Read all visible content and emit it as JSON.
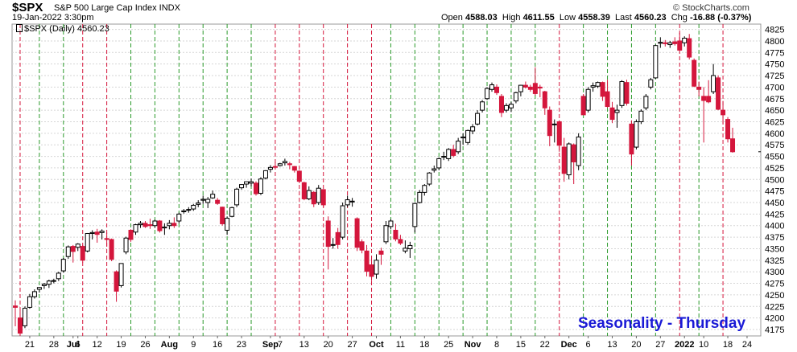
{
  "header": {
    "symbol": "$SPX",
    "description": "S&P 500 Large Cap Index INDX",
    "datetime": "19-Jan-2022 3:30pm",
    "watermark": "© StockCharts.com",
    "open_label": "Open",
    "open": "4588.03",
    "high_label": "High",
    "high": "4611.55",
    "low_label": "Low",
    "low": "4558.39",
    "last_label": "Last",
    "last": "4560.23",
    "chg_label": "Chg",
    "chg": "-16.88 (-0.37%)"
  },
  "legend": {
    "label": "$SPX (Daily) 4560.23"
  },
  "annotation": {
    "text": "Seasonality - Thursday"
  },
  "colors": {
    "up": "#000000",
    "down": "#d4163c",
    "green_line": "#2a9a2a",
    "red_line": "#d4163c",
    "grid": "#d6d6d6"
  },
  "chart_data": {
    "type": "candlestick",
    "title": "$SPX (Daily) 4560.23",
    "ylim": [
      4150,
      4830
    ],
    "y_axis_side": "right",
    "y_ticks": [
      4175,
      4200,
      4225,
      4250,
      4275,
      4300,
      4325,
      4350,
      4375,
      4400,
      4425,
      4450,
      4475,
      4500,
      4525,
      4550,
      4575,
      4600,
      4625,
      4650,
      4675,
      4700,
      4725,
      4750,
      4775,
      4800,
      4825
    ],
    "x_labels": [
      {
        "label": "21",
        "i": 3
      },
      {
        "label": "28",
        "i": 8
      },
      {
        "label": "Jul",
        "i": 12,
        "bold": true
      },
      {
        "label": "6",
        "i": 13
      },
      {
        "label": "12",
        "i": 17
      },
      {
        "label": "19",
        "i": 22
      },
      {
        "label": "26",
        "i": 27
      },
      {
        "label": "Aug",
        "i": 32,
        "bold": true
      },
      {
        "label": "9",
        "i": 37
      },
      {
        "label": "16",
        "i": 42
      },
      {
        "label": "23",
        "i": 47
      },
      {
        "label": "Sep",
        "i": 53,
        "bold": true
      },
      {
        "label": "7",
        "i": 55
      },
      {
        "label": "13",
        "i": 60
      },
      {
        "label": "20",
        "i": 65
      },
      {
        "label": "27",
        "i": 70
      },
      {
        "label": "Oct",
        "i": 75,
        "bold": true
      },
      {
        "label": "11",
        "i": 80
      },
      {
        "label": "18",
        "i": 85
      },
      {
        "label": "25",
        "i": 90
      },
      {
        "label": "Nov",
        "i": 95,
        "bold": true
      },
      {
        "label": "8",
        "i": 100
      },
      {
        "label": "15",
        "i": 105
      },
      {
        "label": "22",
        "i": 110
      },
      {
        "label": "Dec",
        "i": 115,
        "bold": true
      },
      {
        "label": "6",
        "i": 119
      },
      {
        "label": "13",
        "i": 124
      },
      {
        "label": "20",
        "i": 129
      },
      {
        "label": "27",
        "i": 134
      },
      {
        "label": "2022",
        "i": 139,
        "bold": true
      },
      {
        "label": "10",
        "i": 143
      },
      {
        "label": "18",
        "i": 148
      },
      {
        "label": "24",
        "i": 152
      }
    ],
    "vlines": [
      {
        "i": 1,
        "color": "red"
      },
      {
        "i": 5,
        "color": "green"
      },
      {
        "i": 10,
        "color": "green"
      },
      {
        "i": 14,
        "color": "red"
      },
      {
        "i": 19,
        "color": "red"
      },
      {
        "i": 24,
        "color": "green"
      },
      {
        "i": 29,
        "color": "green"
      },
      {
        "i": 34,
        "color": "green"
      },
      {
        "i": 39,
        "color": "green"
      },
      {
        "i": 44,
        "color": "green"
      },
      {
        "i": 49,
        "color": "green"
      },
      {
        "i": 54,
        "color": "red"
      },
      {
        "i": 59,
        "color": "red"
      },
      {
        "i": 64,
        "color": "red"
      },
      {
        "i": 69,
        "color": "red"
      },
      {
        "i": 74,
        "color": "red"
      },
      {
        "i": 78,
        "color": "green"
      },
      {
        "i": 83,
        "color": "green"
      },
      {
        "i": 88,
        "color": "green"
      },
      {
        "i": 93,
        "color": "green"
      },
      {
        "i": 98,
        "color": "green"
      },
      {
        "i": 103,
        "color": "green"
      },
      {
        "i": 108,
        "color": "green"
      },
      {
        "i": 113,
        "color": "red"
      },
      {
        "i": 118,
        "color": "green"
      },
      {
        "i": 123,
        "color": "green"
      },
      {
        "i": 128,
        "color": "green"
      },
      {
        "i": 133,
        "color": "green"
      },
      {
        "i": 138,
        "color": "red"
      },
      {
        "i": 142,
        "color": "green"
      },
      {
        "i": 147,
        "color": "red"
      }
    ],
    "candles": [
      [
        4226,
        4238,
        4182,
        4223
      ],
      [
        4200,
        4215,
        4165,
        4167
      ],
      [
        4183,
        4225,
        4178,
        4221
      ],
      [
        4223,
        4252,
        4220,
        4246
      ],
      [
        4246,
        4262,
        4242,
        4257
      ],
      [
        4262,
        4267,
        4255,
        4266
      ],
      [
        4270,
        4276,
        4263,
        4273
      ],
      [
        4273,
        4283,
        4265,
        4280
      ],
      [
        4280,
        4285,
        4275,
        4281
      ],
      [
        4285,
        4300,
        4280,
        4297
      ],
      [
        4302,
        4330,
        4298,
        4327
      ],
      [
        4333,
        4357,
        4328,
        4354
      ],
      [
        4355,
        4358,
        4320,
        4344
      ],
      [
        4353,
        4362,
        4345,
        4360
      ],
      [
        4355,
        4358,
        4320,
        4325
      ],
      [
        4345,
        4384,
        4342,
        4383
      ],
      [
        4383,
        4390,
        4370,
        4385
      ],
      [
        4386,
        4393,
        4363,
        4381
      ],
      [
        4385,
        4392,
        4370,
        4388
      ],
      [
        4372,
        4385,
        4355,
        4370
      ],
      [
        4370,
        4372,
        4323,
        4327
      ],
      [
        4300,
        4303,
        4235,
        4258
      ],
      [
        4270,
        4318,
        4266,
        4318
      ],
      [
        4343,
        4376,
        4338,
        4373
      ],
      [
        4390,
        4392,
        4365,
        4370
      ],
      [
        4386,
        4404,
        4380,
        4402
      ],
      [
        4402,
        4410,
        4395,
        4405
      ],
      [
        4405,
        4410,
        4395,
        4398
      ],
      [
        4402,
        4415,
        4393,
        4400
      ],
      [
        4400,
        4413,
        4395,
        4410
      ],
      [
        4410,
        4412,
        4385,
        4389
      ],
      [
        4395,
        4405,
        4380,
        4397
      ],
      [
        4400,
        4412,
        4392,
        4405
      ],
      [
        4405,
        4418,
        4395,
        4400
      ],
      [
        4410,
        4428,
        4405,
        4425
      ],
      [
        4430,
        4436,
        4426,
        4432
      ],
      [
        4434,
        4440,
        4428,
        4435
      ],
      [
        4436,
        4447,
        4432,
        4444
      ],
      [
        4446,
        4455,
        4440,
        4449
      ],
      [
        4455,
        4465,
        4447,
        4457
      ],
      [
        4450,
        4462,
        4438,
        4457
      ],
      [
        4460,
        4476,
        4458,
        4468
      ],
      [
        4455,
        4460,
        4445,
        4448
      ],
      [
        4440,
        4441,
        4400,
        4404
      ],
      [
        4390,
        4420,
        4380,
        4416
      ],
      [
        4420,
        4441,
        4418,
        4439
      ],
      [
        4445,
        4482,
        4440,
        4479
      ],
      [
        4482,
        4490,
        4478,
        4489
      ],
      [
        4490,
        4495,
        4482,
        4495
      ],
      [
        4492,
        4502,
        4485,
        4495
      ],
      [
        4492,
        4496,
        4465,
        4469
      ],
      [
        4470,
        4505,
        4466,
        4501
      ],
      [
        4503,
        4520,
        4500,
        4519
      ],
      [
        4522,
        4531,
        4515,
        4526
      ],
      [
        4528,
        4537,
        4522,
        4527
      ],
      [
        4530,
        4536,
        4528,
        4534
      ],
      [
        4536,
        4545,
        4530,
        4539
      ],
      [
        4534,
        4538,
        4522,
        4532
      ],
      [
        4528,
        4529,
        4515,
        4520
      ],
      [
        4518,
        4520,
        4492,
        4496
      ],
      [
        4493,
        4495,
        4455,
        4458
      ],
      [
        4458,
        4485,
        4455,
        4476
      ],
      [
        4472,
        4475,
        4440,
        4447
      ],
      [
        4450,
        4488,
        4445,
        4481
      ],
      [
        4478,
        4479,
        4440,
        4445
      ],
      [
        4410,
        4420,
        4305,
        4355
      ],
      [
        4358,
        4373,
        4350,
        4359
      ],
      [
        4385,
        4395,
        4350,
        4359
      ],
      [
        4375,
        4450,
        4370,
        4443
      ],
      [
        4445,
        4465,
        4440,
        4456
      ],
      [
        4452,
        4460,
        4441,
        4453
      ],
      [
        4415,
        4418,
        4345,
        4353
      ],
      [
        4365,
        4370,
        4340,
        4347
      ],
      [
        4345,
        4358,
        4290,
        4301
      ],
      [
        4315,
        4335,
        4280,
        4290
      ],
      [
        4295,
        4338,
        4285,
        4325
      ],
      [
        4345,
        4352,
        4315,
        4338
      ],
      [
        4365,
        4410,
        4360,
        4400
      ],
      [
        4398,
        4414,
        4392,
        4410
      ],
      [
        4390,
        4404,
        4366,
        4371
      ],
      [
        4370,
        4380,
        4358,
        4362
      ],
      [
        4345,
        4368,
        4340,
        4351
      ],
      [
        4350,
        4365,
        4330,
        4357
      ],
      [
        4398,
        4450,
        4385,
        4448
      ],
      [
        4450,
        4477,
        4448,
        4472
      ],
      [
        4472,
        4490,
        4465,
        4487
      ],
      [
        4490,
        4516,
        4486,
        4514
      ],
      [
        4520,
        4530,
        4515,
        4523
      ],
      [
        4525,
        4548,
        4520,
        4545
      ],
      [
        4550,
        4560,
        4542,
        4550
      ],
      [
        4545,
        4568,
        4540,
        4565
      ],
      [
        4565,
        4575,
        4548,
        4552
      ],
      [
        4560,
        4590,
        4555,
        4583
      ],
      [
        4590,
        4600,
        4575,
        4592
      ],
      [
        4580,
        4608,
        4575,
        4606
      ],
      [
        4605,
        4620,
        4598,
        4614
      ],
      [
        4620,
        4650,
        4617,
        4643
      ],
      [
        4650,
        4672,
        4645,
        4668
      ],
      [
        4675,
        4700,
        4672,
        4697
      ],
      [
        4695,
        4710,
        4690,
        4705
      ],
      [
        4700,
        4706,
        4683,
        4688
      ],
      [
        4680,
        4685,
        4635,
        4645
      ],
      [
        4650,
        4665,
        4645,
        4660
      ],
      [
        4655,
        4668,
        4646,
        4663
      ],
      [
        4670,
        4690,
        4665,
        4688
      ],
      [
        4690,
        4705,
        4680,
        4704
      ],
      [
        4704,
        4712,
        4697,
        4700
      ],
      [
        4700,
        4705,
        4690,
        4695
      ],
      [
        4708,
        4743,
        4682,
        4686
      ],
      [
        4700,
        4705,
        4678,
        4698
      ],
      [
        4690,
        4692,
        4640,
        4655
      ],
      [
        4650,
        4658,
        4572,
        4595
      ],
      [
        4620,
        4630,
        4580,
        4620
      ],
      [
        4625,
        4628,
        4560,
        4574
      ],
      [
        4570,
        4590,
        4495,
        4513
      ],
      [
        4510,
        4580,
        4500,
        4577
      ],
      [
        4575,
        4578,
        4490,
        4538
      ],
      [
        4530,
        4600,
        4520,
        4592
      ],
      [
        4680,
        4685,
        4640,
        4640
      ],
      [
        4650,
        4700,
        4645,
        4695
      ],
      [
        4700,
        4710,
        4690,
        4703
      ],
      [
        4702,
        4712,
        4698,
        4710
      ],
      [
        4710,
        4712,
        4670,
        4680
      ],
      [
        4690,
        4716,
        4655,
        4658
      ],
      [
        4655,
        4668,
        4622,
        4630
      ],
      [
        4645,
        4662,
        4612,
        4650
      ],
      [
        4660,
        4715,
        4655,
        4712
      ],
      [
        4710,
        4716,
        4660,
        4665
      ],
      [
        4620,
        4628,
        4530,
        4555
      ],
      [
        4570,
        4630,
        4565,
        4625
      ],
      [
        4625,
        4652,
        4620,
        4648
      ],
      [
        4655,
        4685,
        4650,
        4680
      ],
      [
        4700,
        4720,
        4695,
        4716
      ],
      [
        4720,
        4792,
        4718,
        4790
      ],
      [
        4795,
        4808,
        4785,
        4797
      ],
      [
        4796,
        4802,
        4788,
        4794
      ],
      [
        4792,
        4800,
        4785,
        4796
      ],
      [
        4798,
        4808,
        4790,
        4794
      ],
      [
        4800,
        4818,
        4780,
        4780
      ],
      [
        4796,
        4810,
        4788,
        4806
      ],
      [
        4805,
        4815,
        4760,
        4765
      ],
      [
        4758,
        4762,
        4700,
        4702
      ],
      [
        4700,
        4712,
        4680,
        4695
      ],
      [
        4680,
        4700,
        4580,
        4671
      ],
      [
        4680,
        4715,
        4665,
        4668
      ],
      [
        4690,
        4750,
        4685,
        4725
      ],
      [
        4720,
        4725,
        4650,
        4652
      ],
      [
        4650,
        4670,
        4620,
        4640
      ],
      [
        4630,
        4635,
        4580,
        4588
      ],
      [
        4588,
        4612,
        4558,
        4560
      ]
    ]
  }
}
